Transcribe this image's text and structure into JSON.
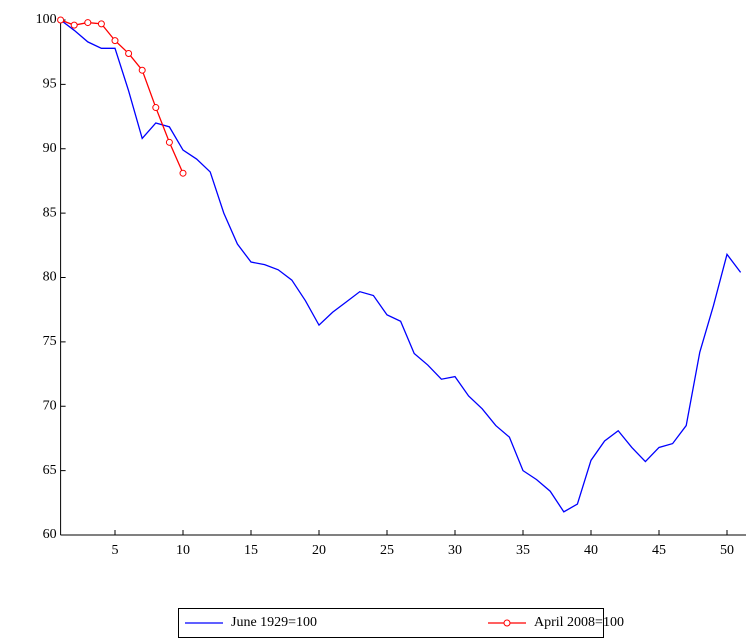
{
  "chart_data": {
    "type": "line",
    "xlim": [
      1,
      51
    ],
    "ylim": [
      60,
      100
    ],
    "xticks": [
      5,
      10,
      15,
      20,
      25,
      30,
      35,
      40,
      45,
      50
    ],
    "yticks": [
      60,
      65,
      70,
      75,
      80,
      85,
      90,
      95,
      100
    ],
    "legend": "bottom",
    "series": [
      {
        "name": "June 1929=100",
        "color": "#0000ff",
        "marker": false,
        "x": [
          1,
          2,
          3,
          4,
          5,
          6,
          7,
          8,
          9,
          10,
          11,
          12,
          13,
          14,
          15,
          16,
          17,
          18,
          19,
          20,
          21,
          22,
          23,
          24,
          25,
          26,
          27,
          28,
          29,
          30,
          31,
          32,
          33,
          34,
          35,
          36,
          37,
          38,
          39,
          40,
          41,
          42,
          43,
          44,
          45,
          46,
          47,
          48,
          49,
          50,
          51
        ],
        "values": [
          100,
          99.2,
          98.3,
          97.8,
          97.8,
          94.5,
          90.8,
          92,
          91.7,
          89.9,
          89.2,
          88.2,
          85,
          82.6,
          81.2,
          81,
          80.6,
          79.8,
          78.2,
          76.3,
          77.3,
          78.1,
          78.9,
          78.6,
          77.1,
          76.6,
          74.1,
          73.2,
          72.1,
          72.3,
          70.8,
          69.8,
          68.5,
          67.6,
          65,
          64.3,
          63.4,
          61.8,
          62.4,
          65.8,
          67.3,
          68.1,
          66.8,
          65.7,
          66.8,
          67.1,
          68.5,
          74.2,
          77.8,
          81.8,
          80.4
        ]
      },
      {
        "name": "April 2008=100",
        "color": "#ff0000",
        "marker": true,
        "x": [
          1,
          2,
          3,
          4,
          5,
          6,
          7,
          8,
          9,
          10
        ],
        "values": [
          100,
          99.6,
          99.8,
          99.7,
          98.4,
          97.4,
          96.1,
          93.2,
          90.5,
          88.1
        ]
      }
    ]
  }
}
